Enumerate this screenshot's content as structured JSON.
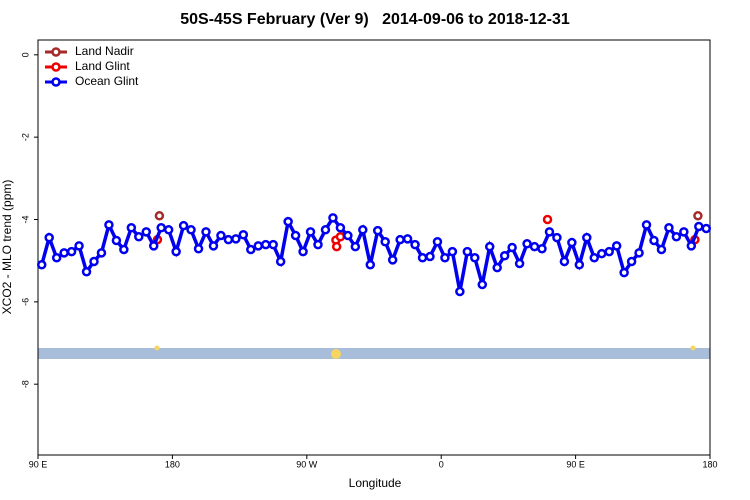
{
  "chart_data": {
    "type": "line",
    "title": "50S-45S February (Ver 9)   2014-09-06 to 2018-12-31",
    "x_label": "Longitude",
    "y_label": "XCO2 - MLO trend (ppm)",
    "xlim": [
      90,
      540
    ],
    "ylim": [
      -9.72,
      0.36
    ],
    "xticks": [
      {
        "value": 90,
        "label": "90 E"
      },
      {
        "value": 180,
        "label": "180"
      },
      {
        "value": 270,
        "label": "90 W"
      },
      {
        "value": 360,
        "label": "0"
      },
      {
        "value": 450,
        "label": "90 E"
      },
      {
        "value": 540,
        "label": "180"
      }
    ],
    "yticks": [
      0,
      -2,
      -4,
      -6,
      -8
    ],
    "legend": "top-left",
    "series": [
      {
        "name": "Land Nadir",
        "color": "#a52a2a",
        "line": false,
        "x": [
          171.3,
          531.9
        ],
        "values": [
          -3.91,
          -3.91
        ]
      },
      {
        "name": "Land Glint",
        "color": "#ee0000",
        "line": false,
        "x": [
          170,
          289.5,
          290,
          292.5,
          431.2,
          529.9
        ],
        "values": [
          -4.49,
          -4.5,
          -4.66,
          -4.42,
          -4.0,
          -4.49
        ]
      },
      {
        "name": "Ocean Glint",
        "color": "#0000ee",
        "line": true,
        "x": [
          92.5,
          97.5,
          102.5,
          107.5,
          112.5,
          117.5,
          122.5,
          127.5,
          132.5,
          137.5,
          142.5,
          147.5,
          152.5,
          157.5,
          162.5,
          167.5,
          172.5,
          177.5,
          182.5,
          187.5,
          192.5,
          197.5,
          202.5,
          207.5,
          212.5,
          217.5,
          222.5,
          227.5,
          232.5,
          237.5,
          242.5,
          247.5,
          252.5,
          257.5,
          262.5,
          267.5,
          272.5,
          277.5,
          282.5,
          287.5,
          292.5,
          297.5,
          302.5,
          307.5,
          312.5,
          317.5,
          322.5,
          327.5,
          332.5,
          337.5,
          342.5,
          347.5,
          352.5,
          357.5,
          362.5,
          367.5,
          372.5,
          377.5,
          382.5,
          387.5,
          392.5,
          397.5,
          402.5,
          407.5,
          412.5,
          417.5,
          422.5,
          427.5,
          432.5,
          437.5,
          442.5,
          447.5,
          452.5,
          457.5,
          462.5,
          467.5,
          472.5,
          477.5,
          482.5,
          487.5,
          492.5,
          497.5,
          502.5,
          507.5,
          512.5,
          517.5,
          522.5,
          527.5,
          532.5,
          537.5
        ],
        "values": [
          -5.1,
          -4.44,
          -4.93,
          -4.81,
          -4.78,
          -4.64,
          -5.27,
          -5.02,
          -4.81,
          -4.13,
          -4.51,
          -4.73,
          -4.2,
          -4.42,
          -4.3,
          -4.64,
          -4.2,
          -4.25,
          -4.78,
          -4.15,
          -4.25,
          -4.71,
          -4.3,
          -4.64,
          -4.39,
          -4.49,
          -4.47,
          -4.37,
          -4.73,
          -4.64,
          -4.61,
          -4.61,
          -5.02,
          -4.05,
          -4.39,
          -4.78,
          -4.3,
          -4.61,
          -4.25,
          -3.96,
          -4.2,
          -4.39,
          -4.66,
          -4.25,
          -5.1,
          -4.27,
          -4.54,
          -4.98,
          -4.49,
          -4.47,
          -4.61,
          -4.93,
          -4.9,
          -4.54,
          -4.93,
          -4.78,
          -5.75,
          -4.78,
          -4.93,
          -5.58,
          -4.66,
          -5.17,
          -4.88,
          -4.68,
          -5.07,
          -4.59,
          -4.66,
          -4.71,
          -4.3,
          -4.44,
          -5.02,
          -4.56,
          -5.1,
          -4.44,
          -4.93,
          -4.83,
          -4.78,
          -4.64,
          -5.29,
          -5.02,
          -4.81,
          -4.13,
          -4.51,
          -4.73,
          -4.2,
          -4.42,
          -4.3,
          -4.64,
          -4.17,
          -4.22
        ]
      }
    ]
  }
}
